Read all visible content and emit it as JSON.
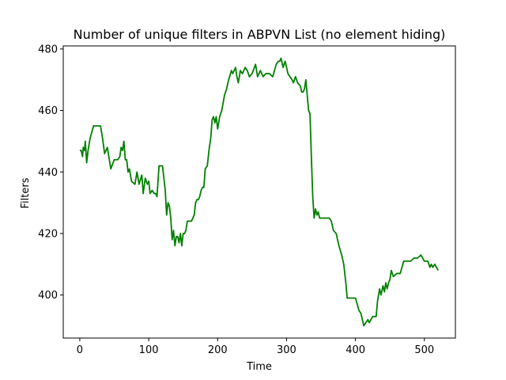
{
  "chart_data": {
    "type": "line",
    "title": "Number of unique filters in ABPVN List (no element hiding)",
    "xlabel": "Time",
    "ylabel": "Filters",
    "xlim": [
      -24,
      545
    ],
    "ylim": [
      386,
      481
    ],
    "xticks": [
      0,
      100,
      200,
      300,
      400,
      500
    ],
    "yticks": [
      400,
      420,
      440,
      460,
      480
    ],
    "grid": false,
    "series": [
      {
        "color": "#008000",
        "x": [
          0,
          2,
          4,
          5,
          7,
          8,
          10,
          12,
          15,
          20,
          25,
          30,
          33,
          36,
          40,
          45,
          50,
          55,
          58,
          60,
          62,
          64,
          66,
          68,
          70,
          72,
          75,
          80,
          83,
          86,
          90,
          92,
          95,
          98,
          100,
          102,
          105,
          108,
          110,
          112,
          115,
          120,
          122,
          124,
          126,
          128,
          130,
          132,
          134,
          136,
          138,
          140,
          142,
          144,
          146,
          148,
          150,
          152,
          154,
          156,
          158,
          160,
          162,
          164,
          166,
          168,
          170,
          172,
          174,
          176,
          178,
          180,
          182,
          185,
          188,
          190,
          192,
          194,
          196,
          198,
          200,
          203,
          206,
          210,
          213,
          216,
          220,
          222,
          224,
          226,
          228,
          230,
          233,
          236,
          240,
          243,
          246,
          250,
          255,
          258,
          262,
          266,
          270,
          275,
          280,
          285,
          288,
          290,
          292,
          295,
          298,
          302,
          305,
          308,
          310,
          313,
          316,
          320,
          322,
          324,
          326,
          328,
          330,
          332,
          334,
          336,
          338,
          340,
          342,
          343,
          344,
          346,
          348,
          350,
          354,
          358,
          362,
          365,
          368,
          372,
          376,
          380,
          383,
          386,
          388,
          390,
          392,
          395,
          400,
          405,
          408,
          410,
          412,
          415,
          418,
          420,
          425,
          430,
          432,
          435,
          437,
          440,
          442,
          444,
          446,
          448,
          450,
          452,
          455,
          460,
          465,
          470,
          475,
          480,
          485,
          490,
          495,
          500,
          505,
          508,
          510,
          512,
          515,
          520
        ],
        "y": [
          447,
          447,
          445,
          448,
          447,
          450,
          443,
          447,
          451,
          455,
          455,
          455,
          451,
          446,
          448,
          441,
          444,
          444,
          445,
          448,
          447,
          450,
          444,
          444,
          440,
          441,
          437,
          436,
          440,
          436,
          439,
          433,
          438,
          436,
          437,
          433,
          434,
          433,
          433,
          432,
          442,
          442,
          438,
          434,
          426,
          430,
          429,
          425,
          418,
          421,
          416,
          419,
          419,
          417,
          420,
          416,
          420,
          420,
          421,
          424,
          424,
          424,
          424,
          425,
          426,
          430,
          431,
          431,
          432,
          434,
          435,
          435,
          441,
          442,
          448,
          451,
          457,
          458,
          456,
          458,
          454,
          458,
          460,
          465,
          467,
          470,
          473,
          472,
          473,
          474,
          471,
          469,
          473,
          472,
          474,
          473,
          471,
          472,
          475,
          471,
          473,
          471,
          472,
          472,
          471,
          475,
          476,
          476,
          477,
          474,
          476,
          472,
          471,
          470,
          469,
          471,
          469,
          468,
          466,
          466,
          467,
          470,
          465,
          460,
          459,
          445,
          432,
          425,
          428,
          427,
          426,
          427,
          425,
          425,
          425,
          425,
          425,
          424,
          421,
          420,
          416,
          413,
          410,
          404,
          399,
          399,
          399,
          399,
          399,
          395,
          394,
          392,
          390,
          391,
          392,
          391,
          393,
          393,
          398,
          402,
          400,
          403,
          401,
          404,
          402,
          404,
          405,
          408,
          406,
          407,
          407,
          411,
          411,
          411,
          412,
          412,
          413,
          411,
          411,
          409,
          410,
          409,
          410,
          408
        ]
      }
    ]
  }
}
